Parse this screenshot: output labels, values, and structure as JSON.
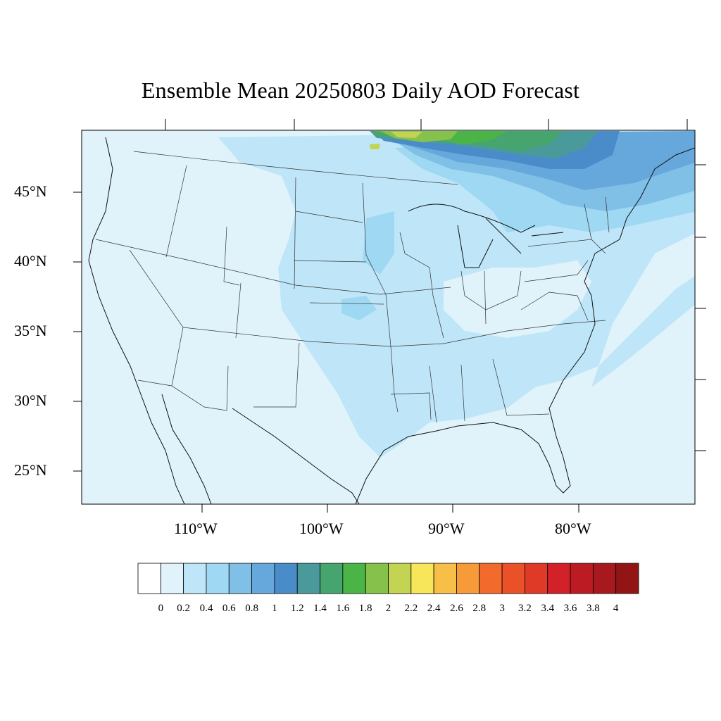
{
  "title": "Ensemble Mean 20250803 Daily AOD Forecast",
  "map": {
    "lat_labels": [
      "45°N",
      "40°N",
      "35°N",
      "30°N",
      "25°N"
    ],
    "lon_labels": [
      "110°W",
      "100°W",
      "90°W",
      "80°W"
    ],
    "ocean_color": "#e0f3fb",
    "land_color": "#e0f3fb"
  },
  "colorbar": {
    "labels": [
      "0",
      "0.2",
      "0.4",
      "0.6",
      "0.8",
      "1",
      "1.2",
      "1.4",
      "1.6",
      "1.8",
      "2",
      "2.2",
      "2.4",
      "2.6",
      "2.8",
      "3",
      "3.2",
      "3.4",
      "3.6",
      "3.8",
      "4"
    ],
    "colors": [
      "#ffffff",
      "#e0f3fb",
      "#bfe6f8",
      "#9fd8f3",
      "#80bfe6",
      "#67a8dc",
      "#4a8cca",
      "#4a9a9b",
      "#46a56f",
      "#4bb447",
      "#86c24b",
      "#c2d452",
      "#f7e65a",
      "#f8bf48",
      "#f69a3a",
      "#f26b2c",
      "#ea5129",
      "#df3a27",
      "#d22129",
      "#bd1b24",
      "#a8181f",
      "#921516"
    ]
  }
}
